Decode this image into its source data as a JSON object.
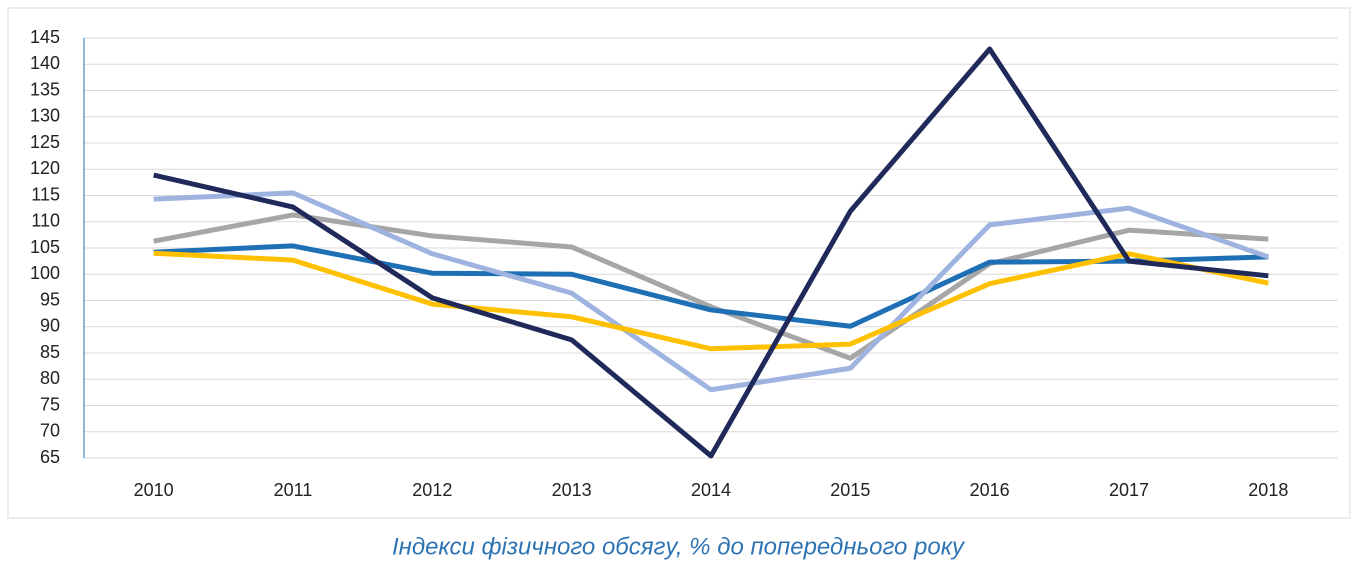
{
  "chart_data": {
    "type": "line",
    "title": "Індекси фізичного обсягу, % до попереднього року",
    "categories": [
      "2010",
      "2011",
      "2012",
      "2013",
      "2014",
      "2015",
      "2016",
      "2017",
      "2018"
    ],
    "series": [
      {
        "color": "#a6a6a6",
        "values": [
          106.3,
          111.3,
          107.3,
          105.2,
          93.8,
          84.0,
          102.0,
          108.4,
          106.7
        ]
      },
      {
        "color": "#1f6fb5",
        "values": [
          104.2,
          105.4,
          100.2,
          100.0,
          93.2,
          90.1,
          102.3,
          102.5,
          103.3
        ]
      },
      {
        "color": "#9fb3e0",
        "values": [
          114.3,
          115.5,
          103.9,
          96.4,
          78.0,
          82.1,
          109.4,
          112.6,
          103.3
        ]
      },
      {
        "color": "#ffc000",
        "values": [
          104.0,
          102.7,
          94.3,
          91.9,
          85.8,
          86.7,
          98.2,
          103.9,
          98.3
        ]
      },
      {
        "color": "#1f2a5a",
        "values": [
          118.9,
          112.8,
          95.5,
          87.5,
          65.4,
          112.0,
          142.9,
          102.5,
          99.7
        ]
      }
    ],
    "ylim": [
      65,
      145
    ],
    "yticks": [
      65,
      70,
      75,
      80,
      85,
      90,
      95,
      100,
      105,
      110,
      115,
      120,
      125,
      130,
      135,
      140,
      145
    ],
    "grid": true
  }
}
